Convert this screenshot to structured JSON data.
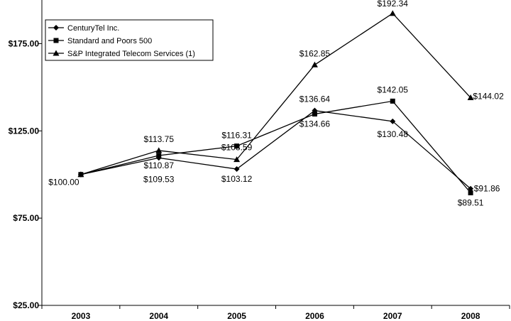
{
  "chart_data": {
    "type": "line",
    "categories": [
      "2003",
      "2004",
      "2005",
      "2006",
      "2007",
      "2008"
    ],
    "ylim": [
      25,
      200
    ],
    "yticks": [
      25,
      75,
      125,
      175
    ],
    "ytick_labels": [
      "$25.00",
      "$75.00",
      "$125.00",
      "$175.00"
    ],
    "grid": false,
    "legend_position": "top-left",
    "series": [
      {
        "name": "CenturyTel Inc.",
        "marker": "diamond",
        "values": [
          100.0,
          109.53,
          103.12,
          136.64,
          130.48,
          91.86
        ],
        "labels": [
          "$100.00",
          "$109.53",
          "$103.12",
          "$136.64",
          "$130.48",
          "$91.86"
        ]
      },
      {
        "name": "Standard and Poors 500",
        "marker": "square",
        "values": [
          100.0,
          110.87,
          116.31,
          134.66,
          142.05,
          89.51
        ],
        "labels": [
          "",
          "$110.87",
          "$116.31",
          "$134.66",
          "$142.05",
          "$89.51"
        ]
      },
      {
        "name": "S&P Integrated Telecom Services (1)",
        "marker": "triangle",
        "values": [
          100.0,
          113.75,
          108.59,
          162.85,
          192.34,
          144.02
        ],
        "labels": [
          "",
          "$113.75",
          "$108.59",
          "$162.85",
          "$192.34",
          "$144.02"
        ]
      }
    ],
    "colors": {
      "line": "#000000",
      "axis": "#000000",
      "background": "#ffffff"
    }
  }
}
